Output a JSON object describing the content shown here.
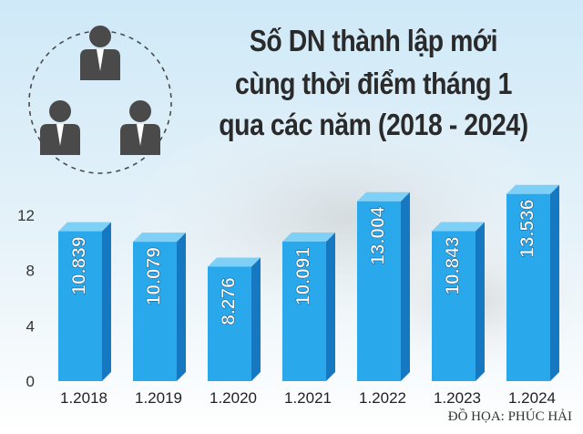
{
  "title": {
    "line1": "Số DN thành lập mới",
    "line2": "cùng thời điểm tháng 1",
    "line3": "qua các năm (2018 - 2024)"
  },
  "credit": "ĐỒ HỌA: PHÚC HẢI",
  "icon": "people-group-icon",
  "colors": {
    "bar_front": "#2aa8ec",
    "bar_side": "#1578c0",
    "bar_top": "#7fd0f7",
    "title": "#2a2a2a"
  },
  "chart_data": {
    "type": "bar",
    "categories": [
      "1.2018",
      "1.2019",
      "1.2020",
      "1.2021",
      "1.2022",
      "1.2023",
      "1.2024"
    ],
    "values": [
      10.839,
      10.079,
      8.276,
      10.091,
      13.004,
      10.843,
      13.536
    ],
    "value_labels": [
      "10.839",
      "10.079",
      "8.276",
      "10.091",
      "13.004",
      "10.843",
      "13.536"
    ],
    "yticks": [
      "0",
      "4",
      "8",
      "12"
    ],
    "ylim": [
      0,
      12
    ],
    "title": "Số DN thành lập mới cùng thời điểm tháng 1 qua các năm (2018 - 2024)",
    "xlabel": "",
    "ylabel": "",
    "grid": false
  }
}
